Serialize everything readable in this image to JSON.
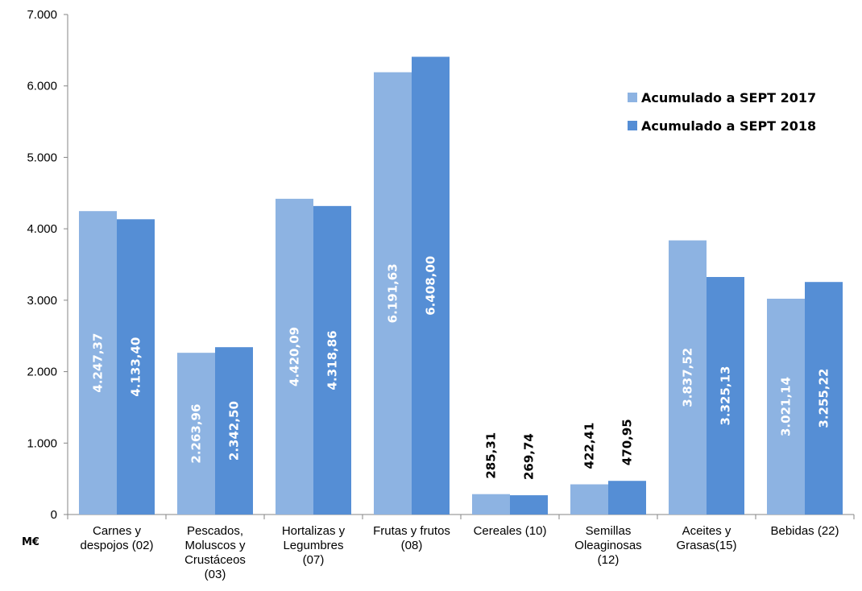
{
  "chart_data": {
    "type": "bar",
    "unit_label": "M€",
    "categories": [
      [
        "Carnes y",
        "despojos (02)"
      ],
      [
        "Pescados,",
        "Moluscos y",
        "Crustáceos",
        "(03)"
      ],
      [
        "Hortalizas y",
        "Legumbres",
        "(07)"
      ],
      [
        "Frutas y frutos",
        "(08)"
      ],
      [
        "Cereales (10)"
      ],
      [
        "Semillas",
        "Oleaginosas",
        "(12)"
      ],
      [
        "Aceites y",
        "Grasas(15)"
      ],
      [
        "Bebidas (22)"
      ]
    ],
    "series": [
      {
        "name": "Acumulado a SEPT 2017",
        "color": "#8DB3E2",
        "values": [
          4247.37,
          2263.96,
          4420.09,
          6191.63,
          285.31,
          422.41,
          3837.52,
          3021.14
        ],
        "labels": [
          "4.247,37",
          "2.263,96",
          "4.420,09",
          "6.191,63",
          "285,31",
          "422,41",
          "3.837,52",
          "3.021,14"
        ]
      },
      {
        "name": "Acumulado a SEPT 2018",
        "color": "#558ED5",
        "values": [
          4133.4,
          2342.5,
          4318.86,
          6408.0,
          269.74,
          470.95,
          3325.13,
          3255.22
        ],
        "labels": [
          "4.133,40",
          "2.342,50",
          "4.318,86",
          "6.408,00",
          "269,74",
          "470,95",
          "3.325,13",
          "3.255,22"
        ]
      }
    ],
    "ylim": [
      0,
      7000
    ],
    "yticks": [
      0,
      1000,
      2000,
      3000,
      4000,
      5000,
      6000,
      7000
    ],
    "ytick_labels": [
      "0",
      "1.000",
      "2.000",
      "3.000",
      "4.000",
      "5.000",
      "6.000",
      "7.000"
    ],
    "legend_position": "top-right",
    "grid": false
  }
}
